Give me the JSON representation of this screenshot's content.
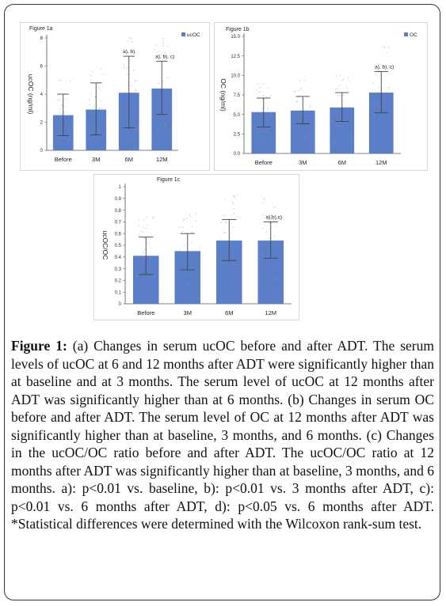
{
  "chart_data": [
    {
      "id": "fig1a",
      "type": "bar",
      "title": "Figure 1a",
      "categories": [
        "Before",
        "3M",
        "6M",
        "12M"
      ],
      "values": [
        2.5,
        2.9,
        4.1,
        4.4
      ],
      "error_low": [
        1.05,
        1.1,
        1.6,
        2.55
      ],
      "error_high": [
        4.0,
        4.8,
        6.7,
        6.35
      ],
      "annotations": [
        "",
        "",
        "a), b)",
        "a), b), c)"
      ],
      "ylabel": "ucOC (ng/ml)",
      "ylim": [
        0,
        8
      ],
      "yticks": [
        0,
        2,
        4,
        6,
        8
      ],
      "legend": "ucOC",
      "legend_position": "top-right",
      "bar_color": "#5b7ec9",
      "grid": false
    },
    {
      "id": "fig1b",
      "type": "bar",
      "title": "Figure 1b",
      "categories": [
        "Before",
        "3M",
        "6M",
        "12M"
      ],
      "values": [
        5.3,
        5.5,
        5.9,
        7.8
      ],
      "error_low": [
        3.4,
        3.8,
        4.1,
        5.2
      ],
      "error_high": [
        7.1,
        7.3,
        7.8,
        10.5
      ],
      "annotations": [
        "",
        "",
        "",
        "a), b), c)"
      ],
      "ylabel": "OC (ng/ml)",
      "ylim": [
        0,
        15
      ],
      "yticks": [
        "0.0",
        "2.5",
        "5.0",
        "7.5",
        "10.0",
        "12.5",
        "15.0"
      ],
      "legend": "OC",
      "legend_position": "top-right",
      "bar_color": "#5b7ec9",
      "grid": false
    },
    {
      "id": "fig1c",
      "type": "bar",
      "title": "Figure 1c",
      "categories": [
        "Before",
        "3M",
        "6M",
        "12M"
      ],
      "values": [
        0.41,
        0.45,
        0.54,
        0.54
      ],
      "error_low": [
        0.25,
        0.29,
        0.37,
        0.39
      ],
      "error_high": [
        0.57,
        0.6,
        0.72,
        0.7
      ],
      "annotations": [
        "",
        "",
        "",
        "a),b),c)"
      ],
      "ylabel": "ucOC/OC",
      "ylim": [
        0,
        1
      ],
      "yticks": [
        "0",
        "0.1",
        "0.2",
        "0.3",
        "0.4",
        "0.5",
        "0.6",
        "0.7",
        "0.8",
        "0.9",
        "1"
      ],
      "legend": "",
      "bar_color": "#5b7ec9",
      "grid": false
    }
  ],
  "caption": {
    "label": "Figure 1:",
    "text": " (a) Changes in serum ucOC before and after ADT. The serum levels of ucOC at 6 and 12 months after ADT were significantly higher than at baseline and at 3 months. The serum level of ucOC at 12 months after ADT was significantly higher than at 6 months. (b) Changes in serum OC before and after ADT. The serum level of OC at 12 months after ADT was significantly higher than at baseline, 3 months, and 6 months. (c) Changes in the ucOC/OC ratio before and after ADT. The ucOC/OC ratio at 12 months after ADT was significantly higher than at baseline, 3 months, and 6 months. a): p<0.01 vs. baseline, b): p<0.01 vs. 3 months after ADT, c): p<0.01 vs. 6 months after ADT, d): p<0.05 vs. 6 months after ADT. *Statistical differences were determined with the Wilcoxon rank-sum test."
  }
}
